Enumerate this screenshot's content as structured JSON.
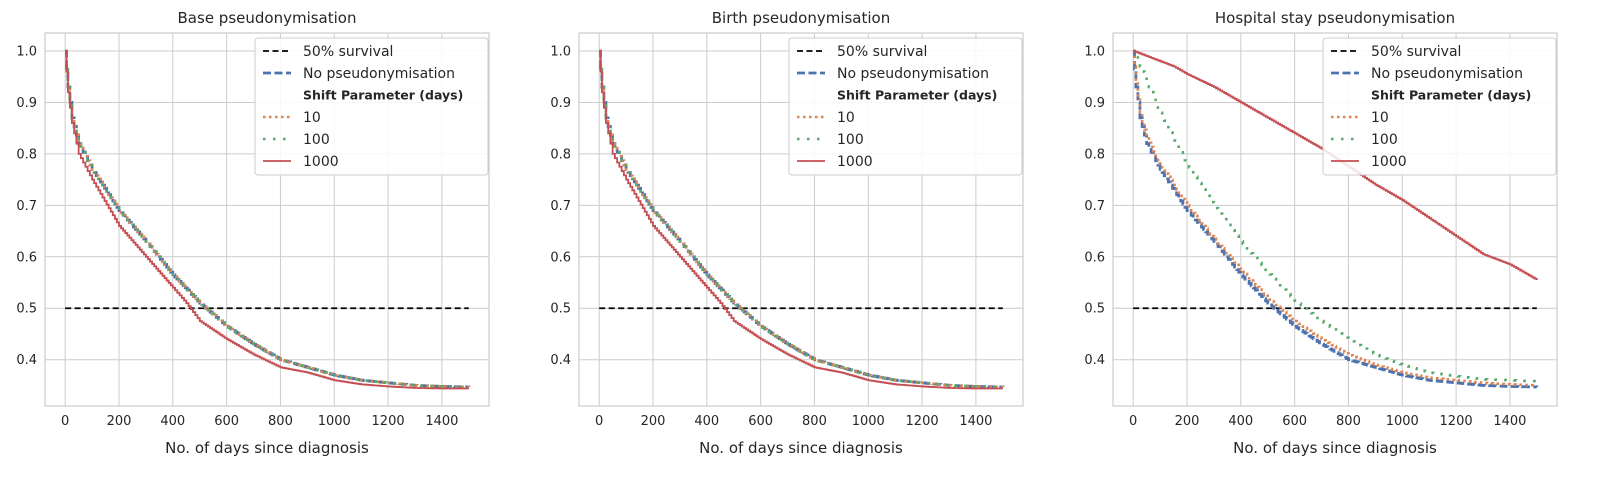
{
  "figure": {
    "background": "#ffffff",
    "grid_color": "#cccccc",
    "frame_color": "#cccccc"
  },
  "colors": {
    "survival": "#000000",
    "none": "#4c72b0",
    "s10": "#dd8452",
    "s100": "#55a868",
    "s1000": "#c44e52"
  },
  "chart_data": [
    {
      "type": "line",
      "title": "Base pseudonymisation",
      "xlabel": "No. of days since diagnosis",
      "ylabel": "",
      "xlim": [
        -75,
        1575
      ],
      "ylim": [
        0.31,
        1.035
      ],
      "xticks": [
        0,
        200,
        400,
        600,
        800,
        1000,
        1200,
        1400
      ],
      "yticks": [
        0.4,
        0.5,
        0.6,
        0.7,
        0.8,
        0.9,
        1.0
      ],
      "grid": true,
      "legend_position": "top-right",
      "legend_header": "Shift Parameter (days)",
      "series": [
        {
          "name": "50% survival",
          "key": "survival",
          "style": "dashed",
          "x": [
            0,
            1500
          ],
          "y": [
            0.5,
            0.5
          ]
        },
        {
          "name": "No pseudonymisation",
          "key": "none",
          "style": "dashed-thick",
          "x": [
            0,
            10,
            25,
            50,
            100,
            200,
            300,
            400,
            500,
            600,
            700,
            800,
            900,
            1000,
            1100,
            1200,
            1300,
            1400,
            1500
          ],
          "y": [
            1.0,
            0.93,
            0.87,
            0.82,
            0.77,
            0.69,
            0.63,
            0.565,
            0.51,
            0.465,
            0.43,
            0.4,
            0.385,
            0.37,
            0.36,
            0.355,
            0.35,
            0.348,
            0.347
          ]
        },
        {
          "name": "10",
          "key": "s10",
          "style": "dotted",
          "x": [
            0,
            10,
            25,
            50,
            100,
            200,
            300,
            400,
            500,
            600,
            700,
            800,
            900,
            1000,
            1100,
            1200,
            1300,
            1400,
            1500
          ],
          "y": [
            1.0,
            0.93,
            0.87,
            0.82,
            0.77,
            0.69,
            0.63,
            0.565,
            0.51,
            0.465,
            0.43,
            0.4,
            0.385,
            0.37,
            0.36,
            0.355,
            0.35,
            0.348,
            0.347
          ]
        },
        {
          "name": "100",
          "key": "s100",
          "style": "dotted-sparse",
          "x": [
            0,
            10,
            25,
            50,
            100,
            200,
            300,
            400,
            500,
            600,
            700,
            800,
            900,
            1000,
            1100,
            1200,
            1300,
            1400,
            1500
          ],
          "y": [
            1.0,
            0.93,
            0.87,
            0.82,
            0.77,
            0.69,
            0.63,
            0.565,
            0.51,
            0.465,
            0.43,
            0.4,
            0.385,
            0.37,
            0.36,
            0.355,
            0.35,
            0.348,
            0.347
          ]
        },
        {
          "name": "1000",
          "key": "s1000",
          "style": "solid",
          "x": [
            0,
            10,
            25,
            50,
            100,
            200,
            300,
            400,
            450,
            500,
            600,
            700,
            800,
            900,
            1000,
            1100,
            1200,
            1300,
            1400,
            1500
          ],
          "y": [
            1.0,
            0.92,
            0.86,
            0.8,
            0.75,
            0.66,
            0.6,
            0.54,
            0.51,
            0.475,
            0.44,
            0.41,
            0.385,
            0.375,
            0.36,
            0.352,
            0.348,
            0.345,
            0.344,
            0.344
          ]
        }
      ]
    },
    {
      "type": "line",
      "title": "Birth pseudonymisation",
      "xlabel": "No. of days since diagnosis",
      "ylabel": "",
      "xlim": [
        -75,
        1575
      ],
      "ylim": [
        0.31,
        1.035
      ],
      "xticks": [
        0,
        200,
        400,
        600,
        800,
        1000,
        1200,
        1400
      ],
      "yticks": [
        0.4,
        0.5,
        0.6,
        0.7,
        0.8,
        0.9,
        1.0
      ],
      "grid": true,
      "legend_position": "top-right",
      "legend_header": "Shift Parameter (days)",
      "series": [
        {
          "name": "50% survival",
          "key": "survival",
          "style": "dashed",
          "x": [
            0,
            1500
          ],
          "y": [
            0.5,
            0.5
          ]
        },
        {
          "name": "No pseudonymisation",
          "key": "none",
          "style": "dashed-thick",
          "x": [
            0,
            10,
            25,
            50,
            100,
            200,
            300,
            400,
            500,
            600,
            700,
            800,
            900,
            1000,
            1100,
            1200,
            1300,
            1400,
            1500
          ],
          "y": [
            1.0,
            0.93,
            0.87,
            0.82,
            0.77,
            0.69,
            0.63,
            0.565,
            0.51,
            0.465,
            0.43,
            0.4,
            0.385,
            0.37,
            0.36,
            0.355,
            0.35,
            0.348,
            0.347
          ]
        },
        {
          "name": "10",
          "key": "s10",
          "style": "dotted",
          "x": [
            0,
            10,
            25,
            50,
            100,
            200,
            300,
            400,
            500,
            600,
            700,
            800,
            900,
            1000,
            1100,
            1200,
            1300,
            1400,
            1500
          ],
          "y": [
            1.0,
            0.93,
            0.87,
            0.82,
            0.77,
            0.69,
            0.63,
            0.565,
            0.51,
            0.465,
            0.43,
            0.4,
            0.385,
            0.37,
            0.36,
            0.355,
            0.35,
            0.348,
            0.347
          ]
        },
        {
          "name": "100",
          "key": "s100",
          "style": "dotted-sparse",
          "x": [
            0,
            10,
            25,
            50,
            100,
            200,
            300,
            400,
            500,
            600,
            700,
            800,
            900,
            1000,
            1100,
            1200,
            1300,
            1400,
            1500
          ],
          "y": [
            1.0,
            0.93,
            0.87,
            0.82,
            0.77,
            0.69,
            0.63,
            0.565,
            0.51,
            0.465,
            0.43,
            0.4,
            0.385,
            0.37,
            0.36,
            0.355,
            0.35,
            0.348,
            0.347
          ]
        },
        {
          "name": "1000",
          "key": "s1000",
          "style": "solid",
          "x": [
            0,
            10,
            25,
            50,
            100,
            200,
            300,
            400,
            450,
            500,
            600,
            700,
            800,
            900,
            1000,
            1100,
            1200,
            1300,
            1400,
            1500
          ],
          "y": [
            1.0,
            0.92,
            0.86,
            0.8,
            0.75,
            0.66,
            0.6,
            0.54,
            0.51,
            0.475,
            0.44,
            0.41,
            0.385,
            0.375,
            0.36,
            0.352,
            0.348,
            0.345,
            0.344,
            0.344
          ]
        }
      ]
    },
    {
      "type": "line",
      "title": "Hospital stay pseudonymisation",
      "xlabel": "No. of days since diagnosis",
      "ylabel": "",
      "xlim": [
        -75,
        1575
      ],
      "ylim": [
        0.31,
        1.035
      ],
      "xticks": [
        0,
        200,
        400,
        600,
        800,
        1000,
        1200,
        1400
      ],
      "yticks": [
        0.4,
        0.5,
        0.6,
        0.7,
        0.8,
        0.9,
        1.0
      ],
      "grid": true,
      "legend_position": "top-right",
      "legend_header": "Shift Parameter (days)",
      "series": [
        {
          "name": "50% survival",
          "key": "survival",
          "style": "dashed",
          "x": [
            0,
            1500
          ],
          "y": [
            0.5,
            0.5
          ]
        },
        {
          "name": "No pseudonymisation",
          "key": "none",
          "style": "dashed-thick",
          "x": [
            0,
            10,
            25,
            50,
            100,
            200,
            300,
            400,
            500,
            600,
            700,
            800,
            900,
            1000,
            1100,
            1200,
            1300,
            1400,
            1500
          ],
          "y": [
            1.0,
            0.93,
            0.87,
            0.82,
            0.77,
            0.69,
            0.63,
            0.565,
            0.51,
            0.465,
            0.43,
            0.4,
            0.385,
            0.37,
            0.36,
            0.355,
            0.35,
            0.348,
            0.347
          ]
        },
        {
          "name": "10",
          "key": "s10",
          "style": "dotted",
          "x": [
            0,
            10,
            25,
            50,
            100,
            200,
            300,
            400,
            500,
            600,
            700,
            800,
            900,
            1000,
            1100,
            1200,
            1300,
            1400,
            1500
          ],
          "y": [
            1.0,
            0.94,
            0.88,
            0.83,
            0.78,
            0.7,
            0.635,
            0.575,
            0.52,
            0.475,
            0.44,
            0.41,
            0.39,
            0.375,
            0.365,
            0.36,
            0.355,
            0.352,
            0.35
          ]
        },
        {
          "name": "100",
          "key": "s100",
          "style": "dotted-sparse",
          "x": [
            0,
            10,
            25,
            50,
            100,
            200,
            300,
            400,
            500,
            600,
            700,
            800,
            900,
            1000,
            1100,
            1200,
            1300,
            1400,
            1500
          ],
          "y": [
            1.0,
            0.99,
            0.97,
            0.94,
            0.88,
            0.78,
            0.7,
            0.63,
            0.57,
            0.515,
            0.475,
            0.44,
            0.41,
            0.39,
            0.375,
            0.368,
            0.362,
            0.36,
            0.358
          ]
        },
        {
          "name": "1000",
          "key": "s1000",
          "style": "solid",
          "x": [
            0,
            50,
            100,
            150,
            200,
            300,
            400,
            500,
            600,
            700,
            800,
            900,
            1000,
            1100,
            1200,
            1300,
            1400,
            1500
          ],
          "y": [
            1.0,
            0.99,
            0.98,
            0.97,
            0.955,
            0.93,
            0.9,
            0.87,
            0.84,
            0.81,
            0.775,
            0.74,
            0.71,
            0.675,
            0.64,
            0.605,
            0.585,
            0.555
          ]
        }
      ]
    }
  ]
}
